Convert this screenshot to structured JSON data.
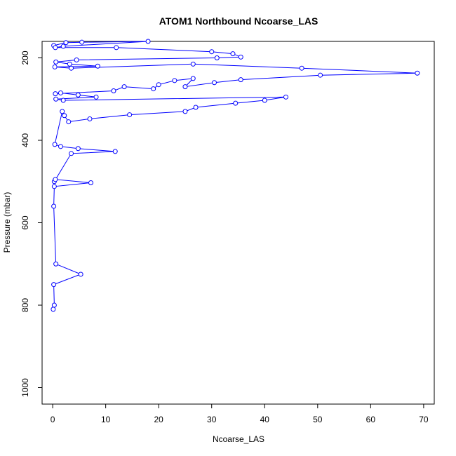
{
  "chart_data": {
    "type": "line",
    "title": "ATOM1 Northbound Ncoarse_LAS",
    "xlabel": "Ncoarse_LAS",
    "ylabel": "Pressure (mbar)",
    "xlim": [
      -2,
      72
    ],
    "ylim": [
      1040,
      160
    ],
    "y_reversed": true,
    "x_ticks": [
      0,
      10,
      20,
      30,
      40,
      50,
      60,
      70
    ],
    "y_ticks": [
      200,
      400,
      600,
      800,
      1000
    ],
    "grid": false,
    "marker": "open-circle",
    "series_color": "#0000ff",
    "series": [
      {
        "x": [
          0.2,
          2.5,
          5.5,
          18,
          2.0,
          0.5,
          12,
          30,
          34,
          35.5,
          31,
          4.5,
          0.6,
          3.2,
          8.5,
          0.4,
          3.5,
          26.5,
          47,
          68.8,
          50.5,
          35.5,
          30.5,
          25,
          26.5,
          23,
          20,
          19,
          13.5,
          11.5,
          0.5,
          1.5,
          4.8,
          8.2,
          0.6,
          2.0,
          44,
          40,
          34.5,
          27,
          25,
          14.5,
          7,
          3,
          2.2,
          1.8,
          0.4,
          1.5,
          4.8,
          11.8,
          3.5,
          0.3,
          0.5,
          7.2,
          0.3,
          0.2,
          0.6,
          5.3,
          0.2,
          0.3,
          0.1
        ],
        "y": [
          170,
          163,
          162,
          160,
          172,
          175,
          175,
          185,
          190,
          198,
          200,
          205,
          210,
          215,
          220,
          222,
          225,
          215,
          225,
          237,
          242,
          253,
          260,
          270,
          250,
          255,
          265,
          275,
          270,
          280,
          287,
          285,
          290,
          295,
          300,
          303,
          295,
          303,
          310,
          320,
          330,
          338,
          348,
          355,
          340,
          330,
          410,
          415,
          420,
          427,
          432,
          500,
          495,
          503,
          512,
          560,
          700,
          725,
          750,
          800,
          810
        ]
      }
    ]
  }
}
